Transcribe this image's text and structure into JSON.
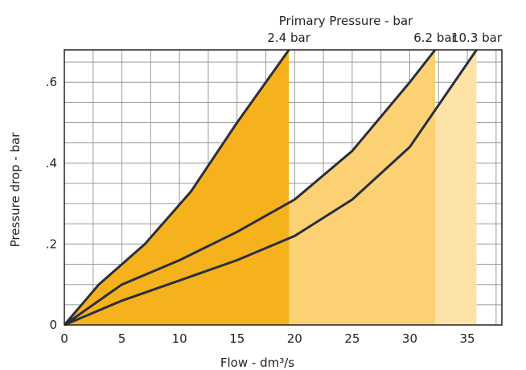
{
  "chart_data": {
    "type": "area",
    "secondary_title": "Primary Pressure - bar",
    "xlabel": "Flow - dm³/s",
    "ylabel": "Pressure drop - bar",
    "xlim": [
      0,
      38
    ],
    "ylim": [
      0,
      0.68
    ],
    "x_ticks": [
      0,
      5,
      10,
      15,
      20,
      25,
      30,
      35
    ],
    "x_tick_labels": [
      "0",
      "5",
      "10",
      "15",
      "20",
      "25",
      "30",
      "35"
    ],
    "y_ticks": [
      0,
      0.2,
      0.4,
      0.6
    ],
    "y_tick_labels": [
      "0",
      ".2",
      ".4",
      ".6"
    ],
    "grid": true,
    "series": [
      {
        "name": "2.4 bar",
        "color": "#f5b21c",
        "x": [
          0,
          3,
          7,
          11,
          15,
          19.5
        ],
        "y": [
          0,
          0.1,
          0.2,
          0.33,
          0.5,
          0.7
        ]
      },
      {
        "name": "6.2 bar",
        "color": "#fbd174",
        "x": [
          0,
          5,
          10,
          15,
          20,
          25,
          30,
          32.2
        ],
        "y": [
          0,
          0.1,
          0.16,
          0.23,
          0.31,
          0.43,
          0.6,
          0.7
        ]
      },
      {
        "name": "10.3 bar",
        "color": "#fde2a8",
        "x": [
          0,
          5,
          10,
          15,
          20,
          25,
          30,
          35.8
        ],
        "y": [
          0,
          0.06,
          0.11,
          0.16,
          0.22,
          0.31,
          0.44,
          0.7
        ]
      }
    ]
  }
}
